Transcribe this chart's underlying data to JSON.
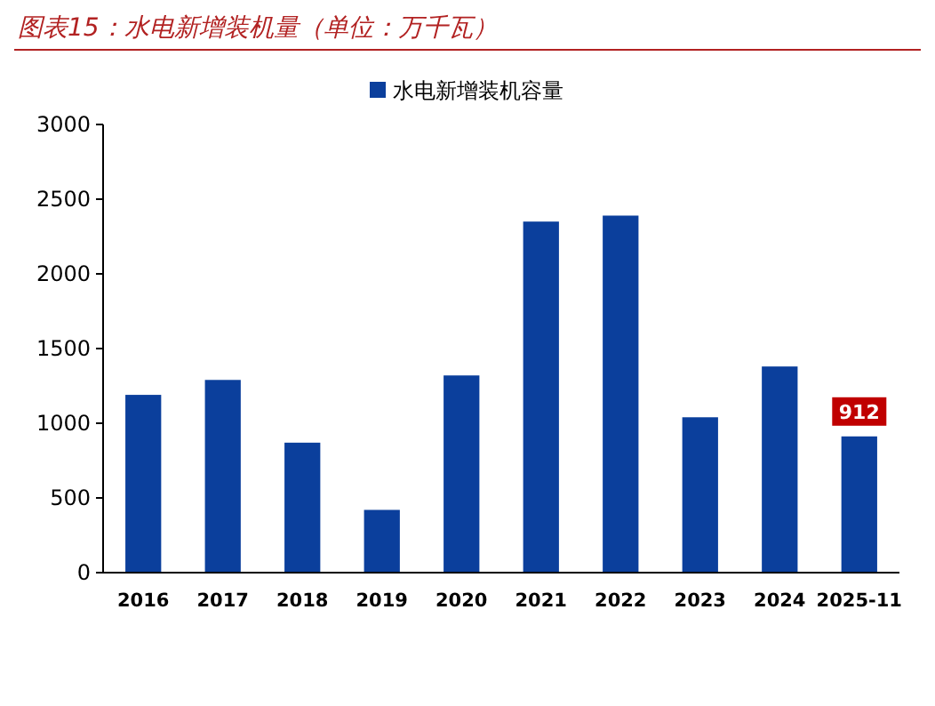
{
  "chart_data": {
    "type": "bar",
    "title": "图表15：水电新增装机量（单位：万千瓦）",
    "categories": [
      "2016",
      "2017",
      "2018",
      "2019",
      "2020",
      "2021",
      "2022",
      "2023",
      "2024",
      "2025-11"
    ],
    "series": [
      {
        "name": "水电新增装机容量",
        "color": "#0b3f9c",
        "values": [
          1190,
          1290,
          870,
          420,
          1320,
          2350,
          2390,
          1040,
          1380,
          912
        ],
        "value_labels": [
          null,
          null,
          null,
          null,
          null,
          null,
          null,
          null,
          null,
          "912"
        ]
      }
    ],
    "ylim": [
      0,
      3000
    ],
    "yticks": [
      0,
      500,
      1000,
      1500,
      2000,
      2500,
      3000
    ],
    "grid": false,
    "legend": "top"
  }
}
